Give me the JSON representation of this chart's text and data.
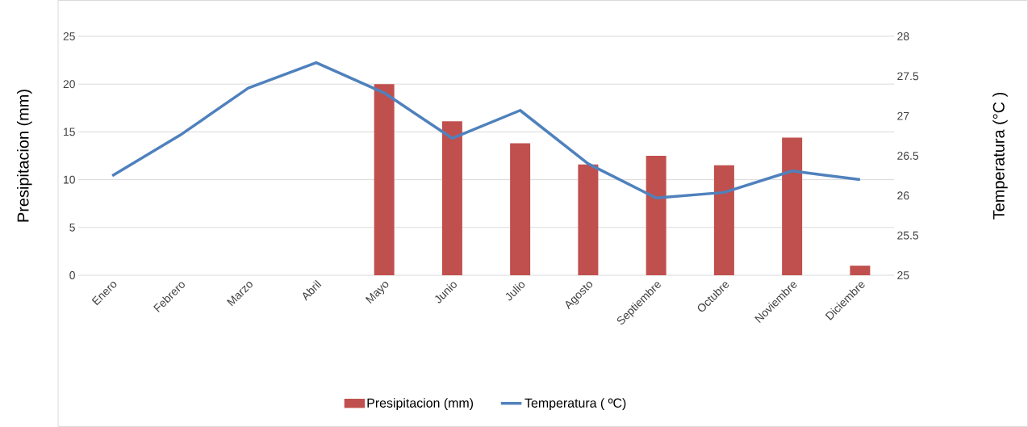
{
  "chart_data": {
    "type": "bar",
    "categories": [
      "Enero",
      "Febrero",
      "Marzo",
      "Abril",
      "Mayo",
      "Junio",
      "Julio",
      "Agosto",
      "Septiembre",
      "Octubre",
      "Noviembre",
      "Diciembre"
    ],
    "ylabel": "Presipitacion (mm)",
    "y2label": "Temperatura (°C )",
    "ylim": [
      0,
      25
    ],
    "yticks": [
      0,
      5,
      10,
      15,
      20,
      25
    ],
    "y2lim": [
      25,
      28
    ],
    "y2ticks": [
      25,
      25.5,
      26,
      26.5,
      27,
      27.5,
      28
    ],
    "grid": "y",
    "legend": "bottom",
    "series": [
      {
        "name": "Presipitacion (mm)",
        "color": "#c0504d",
        "values": [
          0,
          0,
          0,
          0,
          20.0,
          16.1,
          13.8,
          11.6,
          12.5,
          11.5,
          14.4,
          1.0
        ]
      },
      {
        "name": "Temperatura ( ºC)",
        "type": "line",
        "axis": "y2",
        "color": "#4f81bd",
        "values": [
          26.25,
          26.76,
          27.35,
          27.67,
          27.29,
          26.72,
          27.07,
          26.4,
          25.97,
          26.04,
          26.31,
          26.2
        ]
      }
    ]
  }
}
